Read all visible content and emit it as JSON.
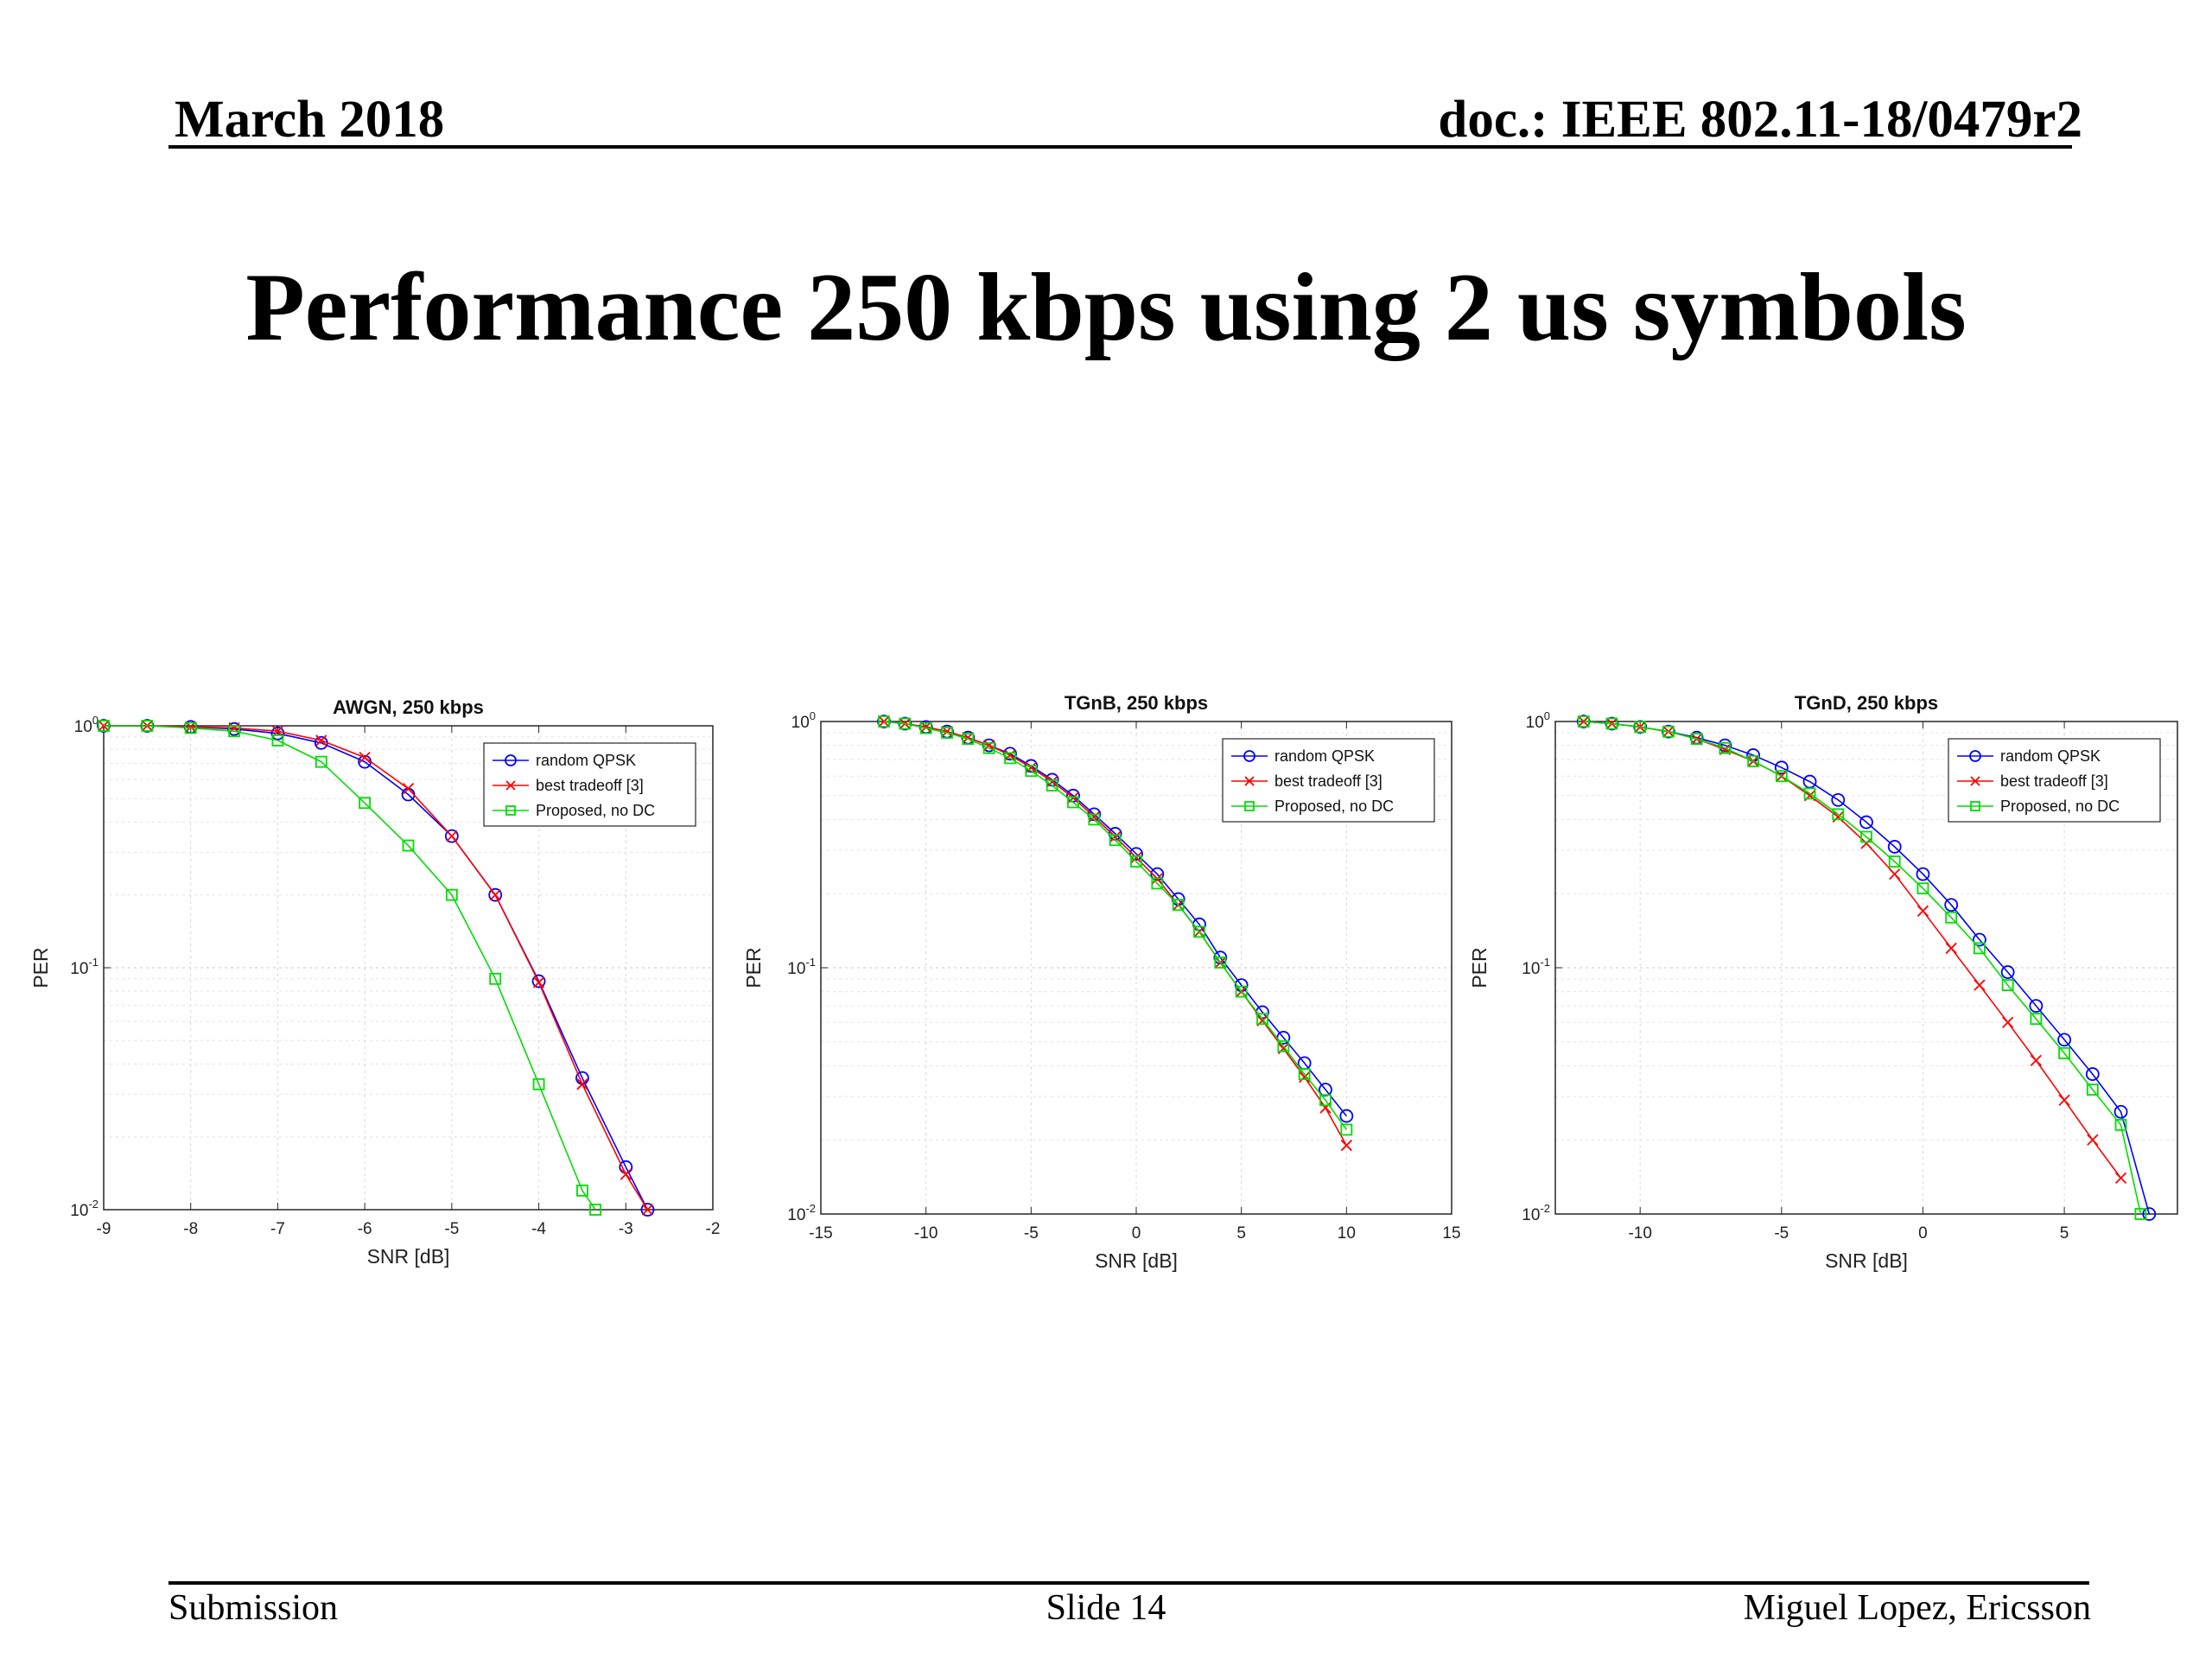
{
  "header": {
    "left": "March 2018",
    "right": "doc.: IEEE 802.11-18/0479r2"
  },
  "slide_title": "Performance 250 kbps using 2 us symbols",
  "footer": {
    "left": "Submission",
    "center": "Slide 14",
    "right": "Miguel Lopez, Ericsson"
  },
  "chart_data": [
    {
      "type": "line",
      "title": "AWGN, 250 kbps",
      "xlabel": "SNR [dB]",
      "ylabel": "PER",
      "xlim": [
        -9,
        -2
      ],
      "ylim": [
        0.01,
        1
      ],
      "yscale": "log",
      "xticks": [
        -9,
        -8,
        -7,
        -6,
        -5,
        -4,
        -3,
        -2
      ],
      "xtick_labels": [
        "-9",
        "-8",
        "-7",
        "-6",
        "-5",
        "-4",
        "-3",
        "-2"
      ],
      "ytick_labels": [
        "10^0",
        "10^-1",
        "10^-2"
      ],
      "grid": true,
      "legend_position": "top-right",
      "series": [
        {
          "name": "random QPSK",
          "color": "#0000ff",
          "marker": "circle",
          "x": [
            -9,
            -8.5,
            -8,
            -7.5,
            -7,
            -6.5,
            -6,
            -5.5,
            -5,
            -4.5,
            -4,
            -3.5,
            -3,
            -2.75
          ],
          "y": [
            1.0,
            1.0,
            0.99,
            0.97,
            0.93,
            0.85,
            0.71,
            0.52,
            0.35,
            0.2,
            0.088,
            0.035,
            0.015,
            0.01
          ]
        },
        {
          "name": "best tradeoff [3]",
          "color": "#ff0000",
          "marker": "x",
          "x": [
            -9,
            -8.5,
            -8,
            -7.5,
            -7,
            -6.5,
            -6,
            -5.5,
            -5,
            -4.5,
            -4,
            -3.5,
            -3,
            -2.75
          ],
          "y": [
            1.0,
            1.0,
            0.99,
            0.98,
            0.95,
            0.87,
            0.74,
            0.55,
            0.35,
            0.2,
            0.087,
            0.033,
            0.014,
            0.01
          ]
        },
        {
          "name": "Proposed, no DC",
          "color": "#00dd00",
          "marker": "square",
          "x": [
            -9,
            -8.5,
            -8,
            -7.5,
            -7,
            -6.5,
            -6,
            -5.5,
            -5,
            -4.5,
            -4,
            -3.5,
            -3.35
          ],
          "y": [
            1.0,
            1.0,
            0.98,
            0.95,
            0.87,
            0.71,
            0.48,
            0.32,
            0.2,
            0.09,
            0.033,
            0.012,
            0.01
          ]
        }
      ]
    },
    {
      "type": "line",
      "title": "TGnB, 250 kbps",
      "xlabel": "SNR [dB]",
      "ylabel": "PER",
      "xlim": [
        -15,
        15
      ],
      "ylim": [
        0.01,
        1
      ],
      "yscale": "log",
      "xticks": [
        -15,
        -10,
        -5,
        0,
        5,
        10,
        15
      ],
      "xtick_labels": [
        "-15",
        "-10",
        "-5",
        "0",
        "5",
        "10",
        "15"
      ],
      "ytick_labels": [
        "10^0",
        "10^-1",
        "10^-2"
      ],
      "grid": true,
      "legend_position": "top-right",
      "series": [
        {
          "name": "random QPSK",
          "color": "#0000ff",
          "marker": "circle",
          "x": [
            -12,
            -11,
            -10,
            -9,
            -8,
            -7,
            -6,
            -5,
            -4,
            -3,
            -2,
            -1,
            0,
            1,
            2,
            3,
            4,
            5,
            6,
            7,
            8,
            9,
            10
          ],
          "y": [
            1.0,
            0.98,
            0.95,
            0.91,
            0.86,
            0.8,
            0.74,
            0.66,
            0.58,
            0.5,
            0.42,
            0.35,
            0.29,
            0.24,
            0.19,
            0.15,
            0.11,
            0.085,
            0.066,
            0.052,
            0.041,
            0.032,
            0.025
          ]
        },
        {
          "name": "best tradeoff [3]",
          "color": "#ff0000",
          "marker": "x",
          "x": [
            -12,
            -11,
            -10,
            -9,
            -8,
            -7,
            -6,
            -5,
            -4,
            -3,
            -2,
            -1,
            0,
            1,
            2,
            3,
            4,
            5,
            6,
            7,
            8,
            9,
            10
          ],
          "y": [
            1.0,
            0.98,
            0.95,
            0.91,
            0.86,
            0.8,
            0.73,
            0.65,
            0.57,
            0.49,
            0.41,
            0.34,
            0.28,
            0.23,
            0.18,
            0.14,
            0.105,
            0.08,
            0.061,
            0.047,
            0.036,
            0.027,
            0.019
          ]
        },
        {
          "name": "Proposed, no DC",
          "color": "#00dd00",
          "marker": "square",
          "x": [
            -12,
            -11,
            -10,
            -9,
            -8,
            -7,
            -6,
            -5,
            -4,
            -3,
            -2,
            -1,
            0,
            1,
            2,
            3,
            4,
            5,
            6,
            7,
            8,
            9,
            10
          ],
          "y": [
            1.0,
            0.98,
            0.94,
            0.9,
            0.85,
            0.78,
            0.71,
            0.63,
            0.55,
            0.47,
            0.4,
            0.33,
            0.27,
            0.22,
            0.18,
            0.14,
            0.105,
            0.08,
            0.062,
            0.048,
            0.037,
            0.029,
            0.022
          ]
        }
      ]
    },
    {
      "type": "line",
      "title": "TGnD, 250 kbps",
      "xlabel": "SNR [dB]",
      "ylabel": "PER",
      "xlim": [
        -13,
        9
      ],
      "ylim": [
        0.01,
        1
      ],
      "yscale": "log",
      "xticks": [
        -10,
        -5,
        0,
        5
      ],
      "xtick_labels": [
        "-10",
        "-5",
        "0",
        "5"
      ],
      "ytick_labels": [
        "10^0",
        "10^-1",
        "10^-2"
      ],
      "grid": true,
      "legend_position": "top-right",
      "series": [
        {
          "name": "random QPSK",
          "color": "#0000ff",
          "marker": "circle",
          "x": [
            -12,
            -11,
            -10,
            -9,
            -8,
            -7,
            -6,
            -5,
            -4,
            -3,
            -2,
            -1,
            0,
            1,
            2,
            3,
            4,
            5,
            6,
            7,
            8
          ],
          "y": [
            1.0,
            0.98,
            0.95,
            0.91,
            0.86,
            0.8,
            0.73,
            0.65,
            0.57,
            0.48,
            0.39,
            0.31,
            0.24,
            0.18,
            0.13,
            0.096,
            0.07,
            0.051,
            0.037,
            0.026,
            0.01
          ]
        },
        {
          "name": "best tradeoff [3]",
          "color": "#ff0000",
          "marker": "x",
          "x": [
            -12,
            -11,
            -10,
            -9,
            -8,
            -7,
            -6,
            -5,
            -4,
            -3,
            -2,
            -1,
            0,
            1,
            2,
            3,
            4,
            5,
            6,
            7
          ],
          "y": [
            1.0,
            0.98,
            0.95,
            0.91,
            0.85,
            0.77,
            0.69,
            0.6,
            0.5,
            0.41,
            0.32,
            0.24,
            0.17,
            0.12,
            0.085,
            0.06,
            0.042,
            0.029,
            0.02,
            0.014
          ]
        },
        {
          "name": "Proposed, no DC",
          "color": "#00dd00",
          "marker": "square",
          "x": [
            -12,
            -11,
            -10,
            -9,
            -8,
            -7,
            -6,
            -5,
            -4,
            -3,
            -2,
            -1,
            0,
            1,
            2,
            3,
            4,
            5,
            6,
            7,
            7.7
          ],
          "y": [
            1.0,
            0.98,
            0.95,
            0.91,
            0.85,
            0.78,
            0.69,
            0.6,
            0.51,
            0.42,
            0.34,
            0.27,
            0.21,
            0.16,
            0.12,
            0.085,
            0.062,
            0.045,
            0.032,
            0.023,
            0.01
          ]
        }
      ]
    }
  ]
}
